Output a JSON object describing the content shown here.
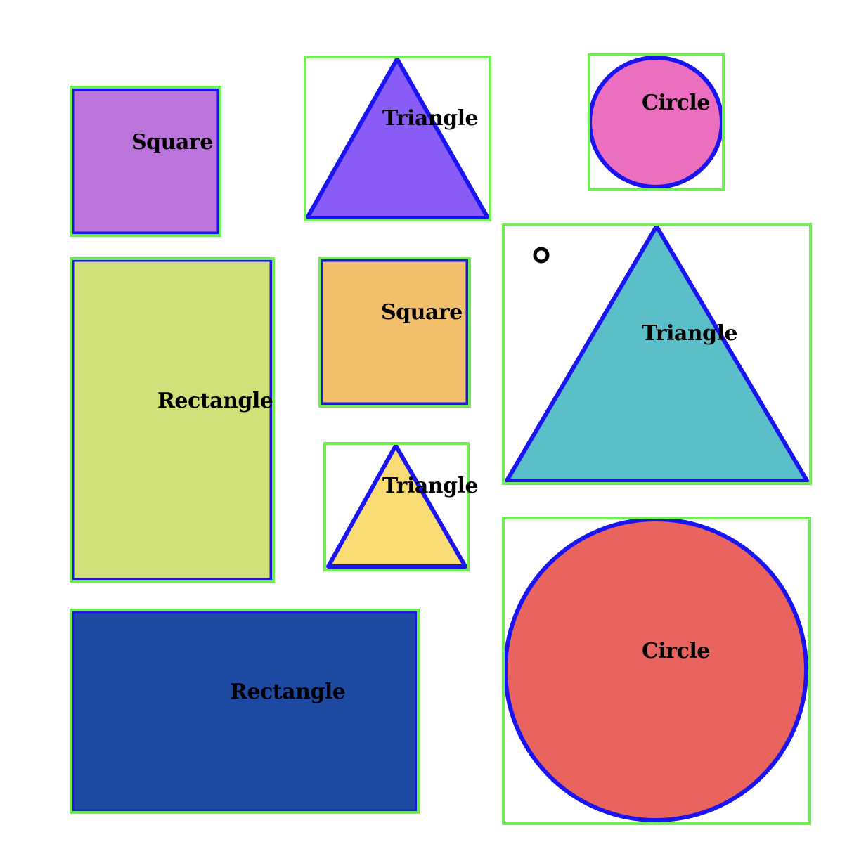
{
  "colors": {
    "background": "#ffffff",
    "outline": "#1a14f0",
    "bounding_box": "#6fed52",
    "label_text": "#000000"
  },
  "shapes": [
    {
      "id": "square-1",
      "kind": "Square",
      "label": "Square",
      "fill": "#bb74dc"
    },
    {
      "id": "triangle-1",
      "kind": "Triangle",
      "label": "Triangle",
      "fill": "#8a5cf7"
    },
    {
      "id": "circle-1",
      "kind": "Circle",
      "label": "Circle",
      "fill": "#ec6fbf"
    },
    {
      "id": "rectangle-1",
      "kind": "Rectangle",
      "label": "Rectangle",
      "fill": "#d0e079"
    },
    {
      "id": "square-2",
      "kind": "Square",
      "label": "Square",
      "fill": "#f2c06b"
    },
    {
      "id": "triangle-2",
      "kind": "Triangle",
      "label": "Triangle",
      "fill": "#5bbfca"
    },
    {
      "id": "triangle-3",
      "kind": "Triangle",
      "label": "Triangle",
      "fill": "#f9dc74"
    },
    {
      "id": "rectangle-2",
      "kind": "Rectangle",
      "label": "Rectangle",
      "fill": "#1f4aa4"
    },
    {
      "id": "circle-2",
      "kind": "Circle",
      "label": "Circle",
      "fill": "#ea645f"
    }
  ],
  "marker": {
    "kind": "small-ring",
    "color": "#000000"
  }
}
